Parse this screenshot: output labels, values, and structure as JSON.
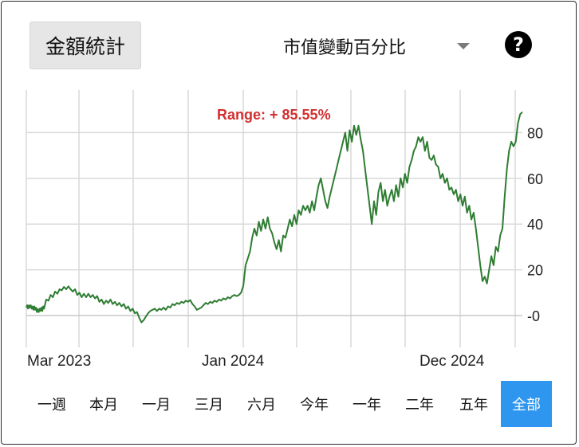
{
  "header": {
    "stats_button": "金額統計",
    "mode_select": "市值變動百分比",
    "help": "?"
  },
  "chart_data": {
    "type": "line",
    "annotation": "Range: + 85.55%",
    "x_ticks": [
      "Mar 2023",
      "Jan 2024",
      "Dec 2024"
    ],
    "y_ticks": [
      0,
      20,
      40,
      60,
      80
    ],
    "ylim": [
      -10,
      90
    ],
    "grid": true,
    "line_color": "#2e7d32",
    "annotation_color": "#d32f2f",
    "points": [
      [
        0,
        3.5
      ],
      [
        0.02,
        4.5
      ],
      [
        0.04,
        3
      ],
      [
        0.06,
        4.5
      ],
      [
        0.08,
        3.5
      ],
      [
        0.1,
        4.5
      ],
      [
        0.12,
        3
      ],
      [
        0.14,
        4
      ],
      [
        0.16,
        2.5
      ],
      [
        0.18,
        4
      ],
      [
        0.2,
        2.5
      ],
      [
        0.22,
        3.5
      ],
      [
        0.24,
        1.5
      ],
      [
        0.26,
        2.8
      ],
      [
        0.28,
        1.5
      ],
      [
        0.3,
        3
      ],
      [
        0.32,
        2
      ],
      [
        0.34,
        3.5
      ],
      [
        0.36,
        2
      ],
      [
        0.38,
        4
      ],
      [
        0.4,
        3
      ],
      [
        0.45,
        7
      ],
      [
        0.5,
        6.5
      ],
      [
        0.55,
        9
      ],
      [
        0.6,
        8
      ],
      [
        0.65,
        10.5
      ],
      [
        0.7,
        9.5
      ],
      [
        0.75,
        11.5
      ],
      [
        0.8,
        11
      ],
      [
        0.85,
        12.5
      ],
      [
        0.9,
        11.5
      ],
      [
        0.95,
        12.8
      ],
      [
        1.0,
        11.5
      ],
      [
        1.05,
        10.5
      ],
      [
        1.1,
        11.5
      ],
      [
        1.15,
        9
      ],
      [
        1.2,
        10
      ],
      [
        1.25,
        8
      ],
      [
        1.3,
        9.5
      ],
      [
        1.35,
        8
      ],
      [
        1.4,
        9.5
      ],
      [
        1.45,
        8
      ],
      [
        1.5,
        9
      ],
      [
        1.55,
        7.5
      ],
      [
        1.6,
        8.5
      ],
      [
        1.65,
        6
      ],
      [
        1.7,
        7
      ],
      [
        1.75,
        5
      ],
      [
        1.8,
        6.5
      ],
      [
        1.85,
        5.5
      ],
      [
        1.9,
        7
      ],
      [
        1.95,
        5
      ],
      [
        2.0,
        6
      ],
      [
        2.05,
        4.5
      ],
      [
        2.1,
        5.5
      ],
      [
        2.15,
        4
      ],
      [
        2.2,
        5
      ],
      [
        2.25,
        3
      ],
      [
        2.3,
        4
      ],
      [
        2.35,
        2
      ],
      [
        2.4,
        3
      ],
      [
        2.45,
        1
      ],
      [
        2.5,
        1.5
      ],
      [
        2.55,
        -1
      ],
      [
        2.6,
        -3
      ],
      [
        2.65,
        -2
      ],
      [
        2.7,
        -0.5
      ],
      [
        2.75,
        1
      ],
      [
        2.8,
        2
      ],
      [
        2.85,
        2.5
      ],
      [
        2.9,
        3
      ],
      [
        2.95,
        2
      ],
      [
        3.0,
        3
      ],
      [
        3.05,
        2.5
      ],
      [
        3.1,
        3.5
      ],
      [
        3.15,
        2.5
      ],
      [
        3.2,
        4
      ],
      [
        3.25,
        3.5
      ],
      [
        3.3,
        5
      ],
      [
        3.35,
        4.5
      ],
      [
        3.4,
        5.5
      ],
      [
        3.45,
        5
      ],
      [
        3.5,
        6
      ],
      [
        3.55,
        5.5
      ],
      [
        3.6,
        6.5
      ],
      [
        3.65,
        6
      ],
      [
        3.7,
        6.8
      ],
      [
        3.75,
        5
      ],
      [
        3.8,
        4
      ],
      [
        3.85,
        2.5
      ],
      [
        3.9,
        3
      ],
      [
        3.95,
        3.5
      ],
      [
        4.0,
        4.5
      ],
      [
        4.05,
        5.5
      ],
      [
        4.1,
        5
      ],
      [
        4.15,
        6
      ],
      [
        4.2,
        5.5
      ],
      [
        4.25,
        6.5
      ],
      [
        4.3,
        6
      ],
      [
        4.35,
        7
      ],
      [
        4.4,
        6.5
      ],
      [
        4.45,
        7.5
      ],
      [
        4.5,
        7
      ],
      [
        4.55,
        8
      ],
      [
        4.6,
        7.5
      ],
      [
        4.65,
        8.5
      ],
      [
        4.7,
        9
      ],
      [
        4.75,
        8.5
      ],
      [
        4.8,
        9
      ],
      [
        4.85,
        10
      ],
      [
        4.9,
        13
      ],
      [
        4.95,
        22
      ],
      [
        5.0,
        25
      ],
      [
        5.05,
        28
      ],
      [
        5.1,
        34
      ],
      [
        5.15,
        38
      ],
      [
        5.2,
        35
      ],
      [
        5.25,
        41
      ],
      [
        5.3,
        37
      ],
      [
        5.35,
        42
      ],
      [
        5.4,
        38
      ],
      [
        5.45,
        43
      ],
      [
        5.5,
        38
      ],
      [
        5.55,
        36
      ],
      [
        5.6,
        32
      ],
      [
        5.65,
        29
      ],
      [
        5.7,
        33
      ],
      [
        5.75,
        28
      ],
      [
        5.8,
        35
      ],
      [
        5.85,
        34
      ],
      [
        5.9,
        38
      ],
      [
        5.95,
        42
      ],
      [
        6.0,
        39
      ],
      [
        6.05,
        44
      ],
      [
        6.1,
        40
      ],
      [
        6.15,
        46
      ],
      [
        6.2,
        44
      ],
      [
        6.25,
        48
      ],
      [
        6.3,
        46
      ],
      [
        6.35,
        48
      ],
      [
        6.4,
        45
      ],
      [
        6.45,
        50
      ],
      [
        6.5,
        46
      ],
      [
        6.55,
        52
      ],
      [
        6.6,
        57
      ],
      [
        6.65,
        60
      ],
      [
        6.7,
        55
      ],
      [
        6.75,
        50
      ],
      [
        6.8,
        47
      ],
      [
        6.85,
        52
      ],
      [
        6.9,
        56
      ],
      [
        6.95,
        60
      ],
      [
        7.0,
        64
      ],
      [
        7.05,
        68
      ],
      [
        7.1,
        72
      ],
      [
        7.15,
        76
      ],
      [
        7.2,
        80
      ],
      [
        7.25,
        72
      ],
      [
        7.3,
        81
      ],
      [
        7.35,
        76
      ],
      [
        7.4,
        83
      ],
      [
        7.45,
        79
      ],
      [
        7.5,
        83
      ],
      [
        7.55,
        77
      ],
      [
        7.6,
        72
      ],
      [
        7.65,
        64
      ],
      [
        7.7,
        56
      ],
      [
        7.75,
        48
      ],
      [
        7.8,
        40
      ],
      [
        7.85,
        50
      ],
      [
        7.9,
        44
      ],
      [
        7.95,
        54
      ],
      [
        8.0,
        58
      ],
      [
        8.05,
        50
      ],
      [
        8.1,
        55
      ],
      [
        8.15,
        48
      ],
      [
        8.2,
        52
      ],
      [
        8.25,
        55
      ],
      [
        8.3,
        50
      ],
      [
        8.35,
        57
      ],
      [
        8.4,
        52
      ],
      [
        8.45,
        60
      ],
      [
        8.5,
        56
      ],
      [
        8.55,
        62
      ],
      [
        8.6,
        58
      ],
      [
        8.65,
        65
      ],
      [
        8.7,
        68
      ],
      [
        8.75,
        72
      ],
      [
        8.8,
        74
      ],
      [
        8.85,
        78
      ],
      [
        8.9,
        76
      ],
      [
        8.95,
        78
      ],
      [
        9.0,
        72
      ],
      [
        9.05,
        76
      ],
      [
        9.1,
        69
      ],
      [
        9.15,
        68
      ],
      [
        9.2,
        70
      ],
      [
        9.25,
        66
      ],
      [
        9.3,
        65
      ],
      [
        9.35,
        60
      ],
      [
        9.4,
        62
      ],
      [
        9.45,
        58
      ],
      [
        9.5,
        60
      ],
      [
        9.55,
        55
      ],
      [
        9.6,
        56
      ],
      [
        9.65,
        53
      ],
      [
        9.7,
        55
      ],
      [
        9.75,
        50
      ],
      [
        9.8,
        53
      ],
      [
        9.85,
        48
      ],
      [
        9.9,
        52
      ],
      [
        9.95,
        45
      ],
      [
        10.0,
        48
      ],
      [
        10.05,
        42
      ],
      [
        10.1,
        45
      ],
      [
        10.15,
        38
      ],
      [
        10.2,
        30
      ],
      [
        10.25,
        22
      ],
      [
        10.3,
        15
      ],
      [
        10.35,
        17
      ],
      [
        10.4,
        14
      ],
      [
        10.45,
        20
      ],
      [
        10.5,
        26
      ],
      [
        10.55,
        22
      ],
      [
        10.6,
        30
      ],
      [
        10.65,
        28
      ],
      [
        10.7,
        35
      ],
      [
        10.75,
        38
      ],
      [
        10.8,
        52
      ],
      [
        10.85,
        64
      ],
      [
        10.9,
        72
      ],
      [
        10.95,
        76
      ],
      [
        11.0,
        74
      ],
      [
        11.05,
        76
      ],
      [
        11.1,
        84
      ],
      [
        11.15,
        88
      ],
      [
        11.2,
        89
      ]
    ]
  },
  "range_buttons": [
    "一週",
    "本月",
    "一月",
    "三月",
    "六月",
    "今年",
    "一年",
    "二年",
    "五年",
    "全部"
  ],
  "active_range": "全部"
}
